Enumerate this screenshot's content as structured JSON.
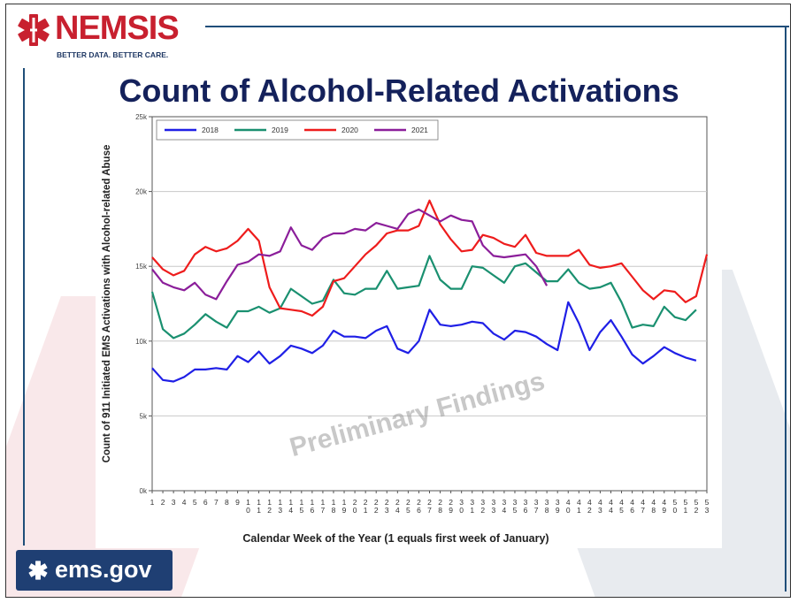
{
  "header": {
    "logo_text": "NEMSIS",
    "tagline": "BETTER DATA. BETTER CARE.",
    "title": "Count of Alcohol-Related Activations"
  },
  "footer": {
    "ems_logo_text": "ems.gov"
  },
  "colors": {
    "title": "#14215b",
    "logo_red": "#c8202f",
    "logo_blue": "#1f3864",
    "series_2018": "#1f1fe6",
    "series_2019": "#1a9070",
    "series_2020": "#ee1c1c",
    "series_2021": "#8b1e9a"
  },
  "watermark": "Preliminary Findings",
  "chart_data": {
    "type": "line",
    "xlabel": "Calendar Week of the Year (1 equals first week of January)",
    "ylabel": "Count of 911 Initiated EMS Activations with Alcohol-related Abuse",
    "xlim": [
      1,
      53
    ],
    "ylim": [
      0,
      25000
    ],
    "yticks": [
      {
        "value": 0,
        "label": "0k"
      },
      {
        "value": 5000,
        "label": "5k"
      },
      {
        "value": 10000,
        "label": "10k"
      },
      {
        "value": 15000,
        "label": "15k"
      },
      {
        "value": 20000,
        "label": "20k"
      },
      {
        "value": 25000,
        "label": "25k"
      }
    ],
    "xtick_labels": [
      "1",
      "2",
      "3",
      "4",
      "5",
      "6",
      "7",
      "8",
      "9",
      "10",
      "11",
      "12",
      "13",
      "14",
      "15",
      "16",
      "17",
      "18",
      "19",
      "20",
      "21",
      "22",
      "23",
      "24",
      "25",
      "26",
      "27",
      "28",
      "29",
      "30",
      "31",
      "32",
      "33",
      "34",
      "35",
      "36",
      "37",
      "38",
      "39",
      "40",
      "41",
      "42",
      "43",
      "44",
      "45",
      "46",
      "47",
      "48",
      "49",
      "50",
      "51",
      "52",
      "53"
    ],
    "grid": true,
    "legend_position": "top-left",
    "series": [
      {
        "name": "2018",
        "color": "#1f1fe6",
        "values": [
          8200,
          7400,
          7300,
          7600,
          8100,
          8100,
          8200,
          8100,
          9000,
          8600,
          9300,
          8500,
          9000,
          9700,
          9500,
          9200,
          9700,
          10700,
          10300,
          10300,
          10200,
          10700,
          11000,
          9500,
          9200,
          10000,
          12100,
          11100,
          11000,
          11100,
          11300,
          11200,
          10500,
          10100,
          10700,
          10600,
          10300,
          9800,
          9400,
          12600,
          11200,
          9400,
          10600,
          11400,
          10300,
          9100,
          8500,
          9000,
          9600,
          9200,
          8900,
          8700
        ]
      },
      {
        "name": "2019",
        "color": "#1a9070",
        "values": [
          13300,
          10800,
          10200,
          10500,
          11100,
          11800,
          11300,
          10900,
          12000,
          12000,
          12300,
          11900,
          12200,
          13500,
          13000,
          12500,
          12700,
          14100,
          13200,
          13100,
          13500,
          13500,
          14700,
          13500,
          13600,
          13700,
          15700,
          14100,
          13500,
          13500,
          15000,
          14900,
          14400,
          13900,
          15000,
          15200,
          14600,
          14000,
          14000,
          14800,
          13900,
          13500,
          13600,
          13900,
          12600,
          10900,
          11100,
          11000,
          12300,
          11600,
          11400,
          12100
        ]
      },
      {
        "name": "2020",
        "color": "#ee1c1c",
        "values": [
          15600,
          14800,
          14400,
          14700,
          15800,
          16300,
          16000,
          16200,
          16700,
          17500,
          16700,
          13600,
          12200,
          12100,
          12000,
          11700,
          12300,
          14000,
          14200,
          15000,
          15800,
          16400,
          17200,
          17400,
          17400,
          17700,
          19400,
          17800,
          16800,
          16000,
          16100,
          17100,
          16900,
          16500,
          16300,
          17100,
          15900,
          15700,
          15700,
          15700,
          16100,
          15100,
          14900,
          15000,
          15200,
          14300,
          13400,
          12800,
          13400,
          13300,
          12600,
          13000,
          15800
        ]
      },
      {
        "name": "2021",
        "color": "#8b1e9a",
        "values": [
          14800,
          13900,
          13600,
          13400,
          13900,
          13100,
          12800,
          14000,
          15100,
          15300,
          15800,
          15700,
          16000,
          17600,
          16400,
          16100,
          16900,
          17200,
          17200,
          17500,
          17400,
          17900,
          17700,
          17500,
          18500,
          18800,
          18400,
          18000,
          18400,
          18100,
          18000,
          16400,
          15700,
          15600,
          15700,
          15800,
          15000,
          13700
        ]
      }
    ]
  }
}
